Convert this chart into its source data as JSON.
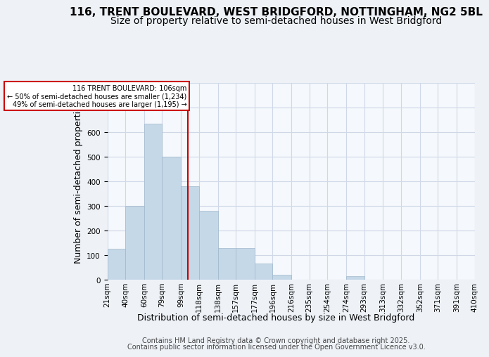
{
  "title_line1": "116, TRENT BOULEVARD, WEST BRIDGFORD, NOTTINGHAM, NG2 5BL",
  "title_line2": "Size of property relative to semi-detached houses in West Bridgford",
  "xlabel": "Distribution of semi-detached houses by size in West Bridgford",
  "ylabel": "Number of semi-detached properties",
  "footer_line1": "Contains HM Land Registry data © Crown copyright and database right 2025.",
  "footer_line2": "Contains public sector information licensed under the Open Government Licence v3.0.",
  "bin_edges": [
    21,
    40,
    60,
    79,
    99,
    118,
    138,
    157,
    177,
    196,
    216,
    235,
    254,
    274,
    293,
    313,
    332,
    352,
    371,
    391,
    410
  ],
  "bar_values": [
    125,
    300,
    635,
    500,
    380,
    280,
    130,
    130,
    65,
    20,
    0,
    0,
    0,
    15,
    0,
    0,
    0,
    0,
    0,
    0
  ],
  "bar_color": "#c5d8e8",
  "bar_edge_color": "#a0b8cc",
  "property_size": 106,
  "property_label": "116 TRENT BOULEVARD: 106sqm",
  "annotation_line1": "← 50% of semi-detached houses are smaller (1,234)",
  "annotation_line2": "49% of semi-detached houses are larger (1,195) →",
  "vline_color": "#cc0000",
  "annotation_box_color": "#ffffff",
  "annotation_box_edge": "#cc0000",
  "ylim": [
    0,
    800
  ],
  "yticks": [
    0,
    100,
    200,
    300,
    400,
    500,
    600,
    700,
    800
  ],
  "bg_color": "#eef2f7",
  "plot_bg_color": "#f5f8fc",
  "grid_color": "#d0d8e8",
  "title_fontsize": 11,
  "subtitle_fontsize": 10,
  "axis_label_fontsize": 9,
  "tick_fontsize": 7.5,
  "footer_fontsize": 7
}
